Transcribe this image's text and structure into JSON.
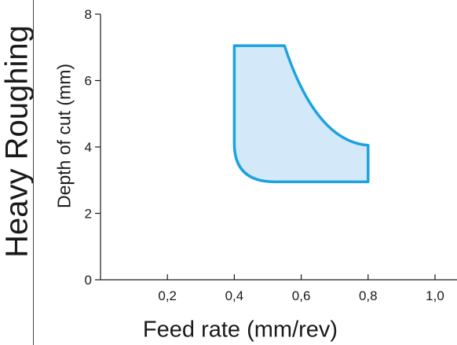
{
  "side_label": "Heavy Roughing",
  "chart_data": {
    "type": "area",
    "xlabel": "Feed rate (mm/rev)",
    "ylabel": "Depth of cut (mm)",
    "xlim": [
      0,
      1.1
    ],
    "ylim": [
      0,
      8
    ],
    "xticks": [
      0.2,
      0.4,
      0.6,
      0.8,
      1.0
    ],
    "xtick_labels": [
      "0,2",
      "0,4",
      "0,6",
      "0,8",
      "1,0"
    ],
    "yticks": [
      0,
      2,
      4,
      6,
      8
    ],
    "ytick_labels": [
      "0",
      "2",
      "4",
      "6",
      "8"
    ],
    "grid": false,
    "series": [
      {
        "x": [
          0.4,
          0.55,
          0.8,
          0.8,
          0.52,
          0.4
        ],
        "y": [
          7.05,
          7.05,
          4.05,
          2.95,
          2.95,
          4.1
        ],
        "fill_color": "#d3e9f9",
        "line_color": "#1ba3e0"
      }
    ]
  }
}
